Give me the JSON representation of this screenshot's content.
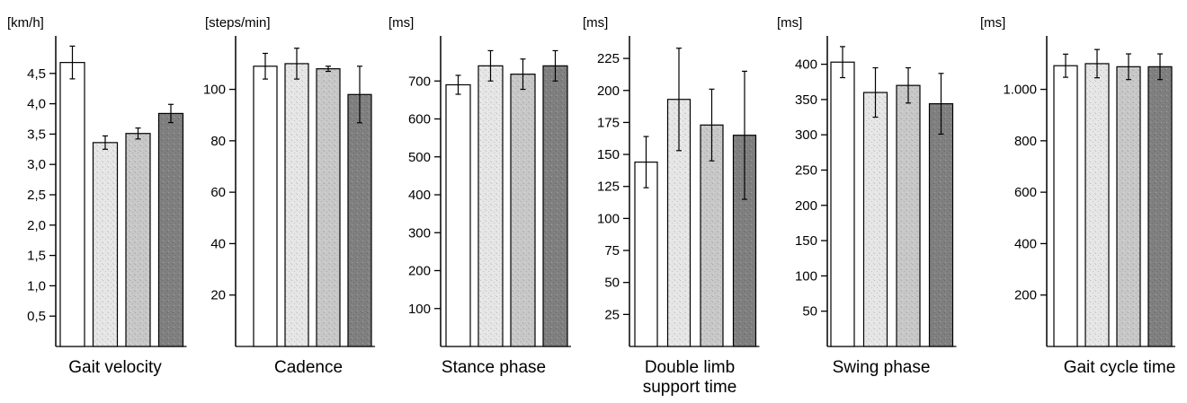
{
  "colors": {
    "group1": "#ffffff",
    "group2": "#e6e6e6",
    "group3": "#c8c8c8",
    "group4": "#808080",
    "stroke": "#000000"
  },
  "chart_data": [
    {
      "type": "bar",
      "title": "Gait velocity",
      "ylabel": "[km/h]",
      "yticks": [
        0.5,
        1.0,
        1.5,
        2.0,
        2.5,
        3.0,
        3.5,
        4.0,
        4.5
      ],
      "ytick_labels": [
        "0,5",
        "1,0",
        "1,5",
        "2,0",
        "2,5",
        "3,0",
        "3,5",
        "4,0",
        "4,5"
      ],
      "ylim": [
        0,
        5.0
      ],
      "values": [
        4.68,
        3.36,
        3.51,
        3.84
      ],
      "errors": [
        0.27,
        0.11,
        0.09,
        0.15
      ]
    },
    {
      "type": "bar",
      "title": "Cadence",
      "ylabel": "[steps/min]",
      "yticks": [
        20,
        40,
        60,
        80,
        100
      ],
      "ytick_labels": [
        "20",
        "40",
        "60",
        "80",
        "100"
      ],
      "ylim": [
        0,
        118
      ],
      "values": [
        109,
        110,
        108,
        98
      ],
      "errors": [
        5,
        6,
        1,
        11
      ]
    },
    {
      "type": "bar",
      "title": "Stance phase",
      "ylabel": "[ms]",
      "yticks": [
        100,
        200,
        300,
        400,
        500,
        600,
        700
      ],
      "ytick_labels": [
        "100",
        "200",
        "300",
        "400",
        "500",
        "600",
        "700"
      ],
      "ylim": [
        0,
        800
      ],
      "values": [
        690,
        740,
        718,
        740
      ],
      "errors": [
        25,
        40,
        40,
        40
      ]
    },
    {
      "type": "bar",
      "title": "Double limb support time",
      "title_lines": [
        "Double limb",
        "support time"
      ],
      "ylabel": "[ms]",
      "yticks": [
        25,
        50,
        75,
        100,
        125,
        150,
        175,
        200,
        225
      ],
      "ytick_labels": [
        "25",
        "50",
        "75",
        "100",
        "125",
        "150",
        "175",
        "200",
        "225"
      ],
      "ylim": [
        0,
        237
      ],
      "values": [
        144,
        193,
        173,
        165
      ],
      "errors": [
        20,
        40,
        28,
        50
      ]
    },
    {
      "type": "bar",
      "title": "Swing phase",
      "ylabel": "[ms]",
      "yticks": [
        50,
        100,
        150,
        200,
        250,
        300,
        350,
        400
      ],
      "ytick_labels": [
        "50",
        "100",
        "150",
        "200",
        "250",
        "300",
        "350",
        "400"
      ],
      "ylim": [
        0,
        430
      ],
      "values": [
        403,
        360,
        370,
        344
      ],
      "errors": [
        22,
        35,
        25,
        43
      ]
    },
    {
      "type": "bar",
      "title": "Gait cycle time",
      "ylabel": "[ms]",
      "yticks": [
        200,
        400,
        600,
        800,
        1000
      ],
      "ytick_labels": [
        "200",
        "400",
        "600",
        "800",
        "1.000"
      ],
      "ylim": [
        0,
        1180
      ],
      "values": [
        1092,
        1100,
        1088,
        1088
      ],
      "errors": [
        45,
        55,
        50,
        50
      ]
    }
  ]
}
